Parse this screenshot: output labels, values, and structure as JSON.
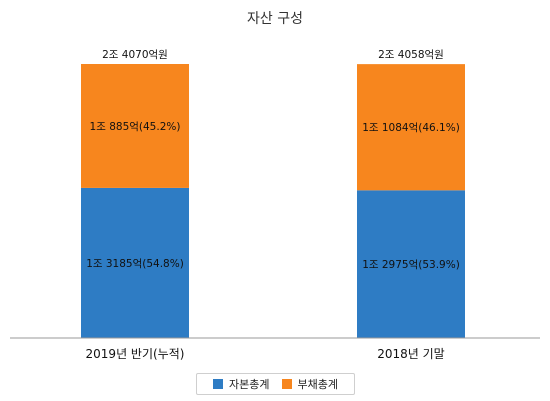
{
  "chart_data": {
    "type": "bar",
    "stacked": true,
    "title": "자산 구성",
    "categories": [
      "2019년 반기(누적)",
      "2018년 기말"
    ],
    "series": [
      {
        "name": "자본총계",
        "color": "#2e7cc4",
        "values": [
          13185,
          12975
        ],
        "labels": [
          "1조 3185억(54.8%)",
          "1조 2975억(53.9%)"
        ]
      },
      {
        "name": "부채총계",
        "color": "#f7861e",
        "values": [
          10885,
          11084
        ],
        "labels": [
          "1조 885억(45.2%)",
          "1조 1084억(46.1%)"
        ]
      }
    ],
    "totals": [
      24070,
      24058
    ],
    "total_labels": [
      "2조 4070억원",
      "2조 4058억원"
    ],
    "ylim": [
      0,
      24070
    ],
    "grid": false,
    "legend_position": "bottom"
  }
}
